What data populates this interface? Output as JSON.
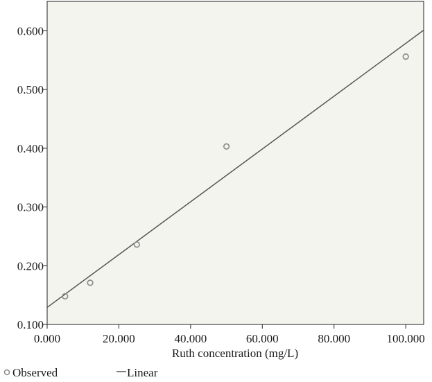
{
  "chart_data": {
    "type": "scatter",
    "xlabel": "Ruth concentration (mg/L)",
    "ylabel": "",
    "xlim": [
      0,
      105
    ],
    "ylim": [
      0.1,
      0.65
    ],
    "x_ticks": [
      "0.000",
      "20.000",
      "40.000",
      "60.000",
      "80.000",
      "100.000"
    ],
    "x_tick_values": [
      0,
      20,
      40,
      60,
      80,
      100
    ],
    "y_ticks": [
      "0.100",
      "0.200",
      "0.300",
      "0.400",
      "0.500",
      "0.600"
    ],
    "y_tick_values": [
      0.1,
      0.2,
      0.3,
      0.4,
      0.5,
      0.6
    ],
    "grid": false,
    "legend_position": "bottom-left",
    "series": [
      {
        "name": "Observed",
        "kind": "scatter",
        "marker": "open-circle",
        "x": [
          5,
          12,
          25,
          50,
          100
        ],
        "y": [
          0.148,
          0.171,
          0.236,
          0.403,
          0.556
        ]
      },
      {
        "name": "Linear",
        "kind": "line",
        "x": [
          0,
          105
        ],
        "y": [
          0.129,
          0.601
        ]
      }
    ],
    "colors": {
      "plot_background": "#f4f4ee",
      "marker": "#888888",
      "line": "#555555",
      "axis": "#222222"
    }
  }
}
